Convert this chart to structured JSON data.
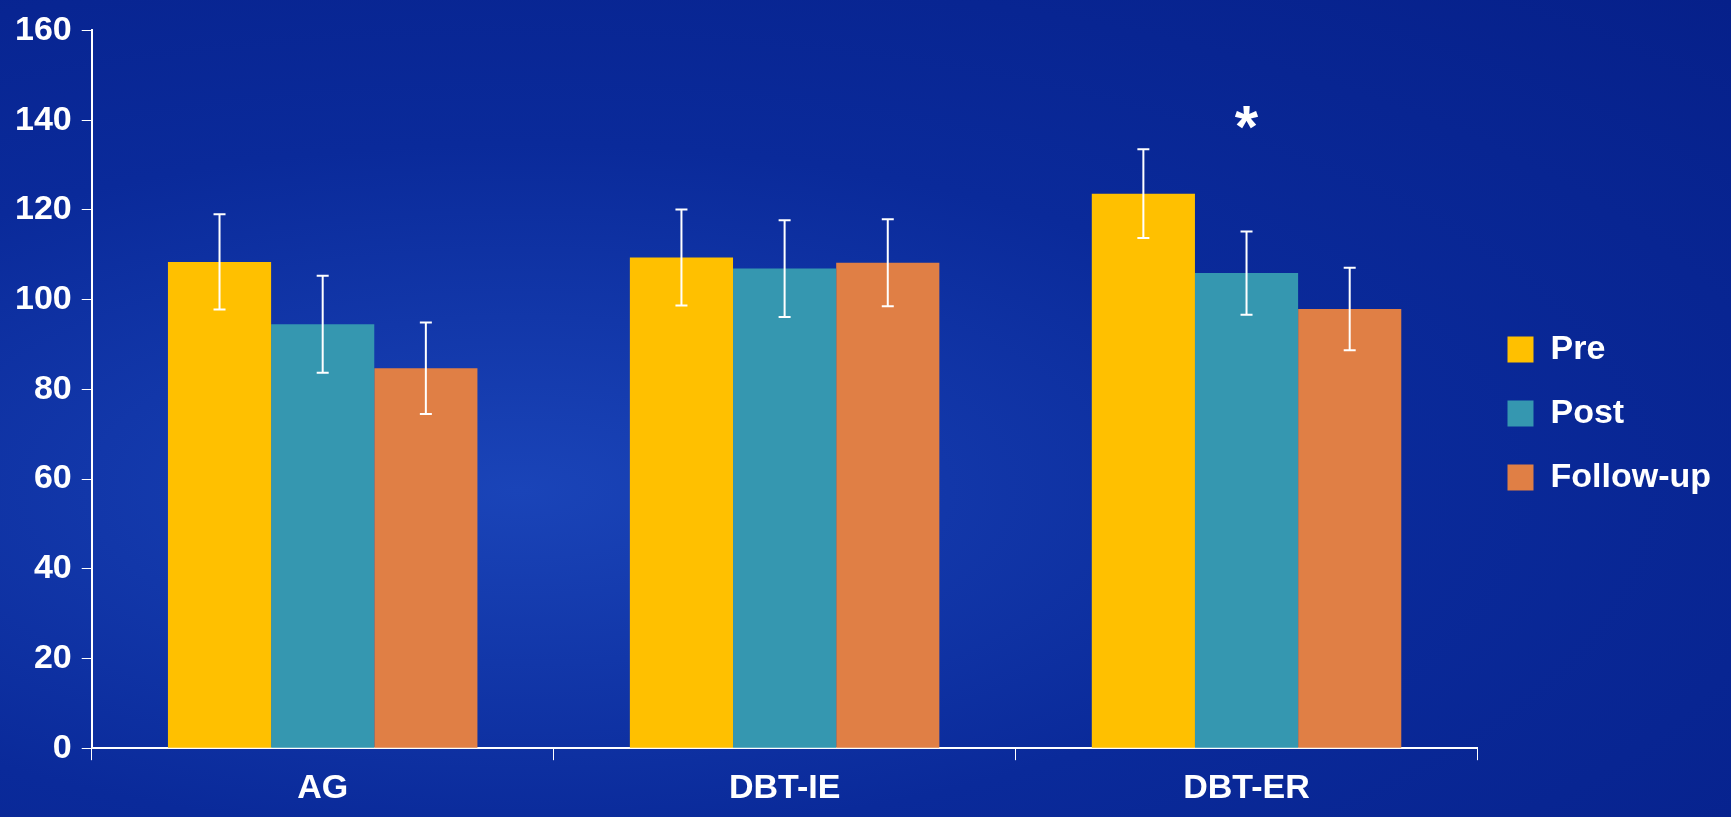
{
  "chart_data": {
    "type": "bar",
    "categories": [
      "AG",
      "DBT-IE",
      "DBT-ER"
    ],
    "series": [
      {
        "name": "Pre",
        "color": "#ffc000",
        "values": [
          108.4,
          109.4,
          123.6
        ],
        "errors": [
          10.6,
          10.7,
          9.9
        ]
      },
      {
        "name": "Post",
        "color": "#3597b0",
        "values": [
          94.5,
          106.9,
          105.9
        ],
        "errors": [
          10.8,
          10.8,
          9.3
        ]
      },
      {
        "name": "Follow-up",
        "color": "#e07f45",
        "values": [
          84.7,
          108.2,
          97.9
        ],
        "errors": [
          10.2,
          9.7,
          9.2
        ]
      }
    ],
    "ylim": [
      0,
      160
    ],
    "yticks": [
      0,
      20,
      40,
      60,
      80,
      100,
      120,
      140,
      160
    ],
    "grid": false,
    "legend": "right",
    "annotations": [
      "*"
    ]
  }
}
